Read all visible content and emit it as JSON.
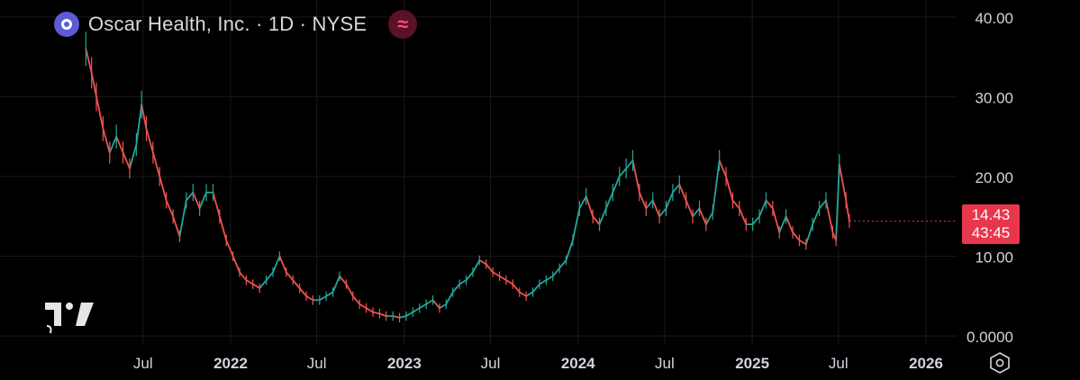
{
  "header": {
    "title": "Oscar Health, Inc. · 1D · NYSE",
    "logo_icon": "oscar-logo-icon",
    "indicator_icon": "approx-indicator-icon",
    "indicator_glyph": "≈"
  },
  "price_tag": {
    "price": "14.43",
    "countdown": "43:45",
    "color": "#e8364a"
  },
  "colors": {
    "up": "#26a69a",
    "down": "#ef5350",
    "grid": "#1a1a1a",
    "axis_text": "#d1d4dc",
    "background": "#000000"
  },
  "chart_data": {
    "type": "line",
    "title": "Oscar Health, Inc. · 1D · NYSE",
    "y_tick_labels": [
      "40.00",
      "30.00",
      "20.00",
      "10.00",
      "0.0000"
    ],
    "y_ticks": [
      40,
      30,
      20,
      10,
      0
    ],
    "ylim": [
      -1,
      41
    ],
    "x_tick_labels": [
      "Jul",
      "2022",
      "Jul",
      "2023",
      "Jul",
      "2024",
      "Jul",
      "2025",
      "Jul",
      "2026"
    ],
    "x_ticks": [
      "2021-07-01",
      "2022-01-01",
      "2022-07-01",
      "2023-01-01",
      "2023-07-01",
      "2024-01-01",
      "2024-07-01",
      "2025-01-01",
      "2025-07-01",
      "2026-01-01"
    ],
    "grid": true,
    "series": [
      {
        "x": [
          "2021-03-03",
          "2021-03-15",
          "2021-03-25",
          "2021-04-08",
          "2021-04-22",
          "2021-05-06",
          "2021-05-20",
          "2021-06-03",
          "2021-06-17",
          "2021-06-28",
          "2021-07-08",
          "2021-07-22",
          "2021-08-05",
          "2021-08-19",
          "2021-09-02",
          "2021-09-16",
          "2021-09-30",
          "2021-10-14",
          "2021-10-28",
          "2021-11-11",
          "2021-11-25",
          "2021-12-09",
          "2021-12-23",
          "2022-01-06",
          "2022-01-20",
          "2022-02-03",
          "2022-02-17",
          "2022-03-03",
          "2022-03-17",
          "2022-03-31",
          "2022-04-14",
          "2022-04-28",
          "2022-05-12",
          "2022-05-26",
          "2022-06-09",
          "2022-06-23",
          "2022-07-07",
          "2022-07-21",
          "2022-08-04",
          "2022-08-18",
          "2022-09-01",
          "2022-09-15",
          "2022-09-29",
          "2022-10-13",
          "2022-10-27",
          "2022-11-10",
          "2022-11-24",
          "2022-12-08",
          "2022-12-22",
          "2023-01-05",
          "2023-01-19",
          "2023-02-02",
          "2023-02-16",
          "2023-03-02",
          "2023-03-16",
          "2023-03-30",
          "2023-04-13",
          "2023-04-27",
          "2023-05-11",
          "2023-05-25",
          "2023-06-08",
          "2023-06-22",
          "2023-07-06",
          "2023-07-20",
          "2023-08-03",
          "2023-08-17",
          "2023-08-31",
          "2023-09-14",
          "2023-09-28",
          "2023-10-12",
          "2023-10-26",
          "2023-11-09",
          "2023-11-23",
          "2023-12-07",
          "2023-12-21",
          "2024-01-04",
          "2024-01-18",
          "2024-02-01",
          "2024-02-15",
          "2024-02-29",
          "2024-03-14",
          "2024-03-28",
          "2024-04-11",
          "2024-04-25",
          "2024-05-09",
          "2024-05-23",
          "2024-06-06",
          "2024-06-20",
          "2024-07-04",
          "2024-07-18",
          "2024-08-01",
          "2024-08-15",
          "2024-08-29",
          "2024-09-12",
          "2024-09-26",
          "2024-10-10",
          "2024-10-24",
          "2024-11-07",
          "2024-11-21",
          "2024-12-05",
          "2024-12-19",
          "2025-01-02",
          "2025-01-16",
          "2025-01-30",
          "2025-02-13",
          "2025-02-27",
          "2025-03-13",
          "2025-03-27",
          "2025-04-10",
          "2025-04-24",
          "2025-05-08",
          "2025-05-22",
          "2025-06-05",
          "2025-06-19",
          "2025-06-26",
          "2025-07-03",
          "2025-07-17",
          "2025-07-24"
        ],
        "values": [
          36,
          33,
          30,
          26,
          23,
          25,
          23,
          21,
          24,
          29,
          26,
          23,
          20,
          17,
          15,
          12.5,
          17,
          18,
          16,
          18,
          18,
          15,
          12,
          10,
          8,
          7,
          6.5,
          6,
          7,
          8,
          10,
          8,
          7,
          6,
          5,
          4.5,
          4.5,
          5,
          5.5,
          7.5,
          6.5,
          5,
          4,
          3.5,
          3,
          2.8,
          2.5,
          2.5,
          2.3,
          2.5,
          3,
          3.5,
          4,
          4.5,
          3.5,
          4,
          5.5,
          6.5,
          7,
          8,
          9.5,
          9,
          8,
          7.5,
          7,
          6.5,
          5.5,
          5,
          5.5,
          6.5,
          7,
          7.5,
          8.5,
          9.5,
          12,
          16,
          17.5,
          15,
          14,
          16,
          18,
          20,
          21,
          22,
          18,
          16,
          17,
          15,
          16,
          18,
          19,
          17,
          15,
          16,
          14,
          15.5,
          22,
          20,
          17,
          16,
          14,
          14,
          15,
          17,
          16,
          13,
          15,
          13,
          12,
          11.5,
          14,
          16,
          17,
          13,
          12,
          21.5,
          17,
          14.4
        ]
      }
    ]
  }
}
